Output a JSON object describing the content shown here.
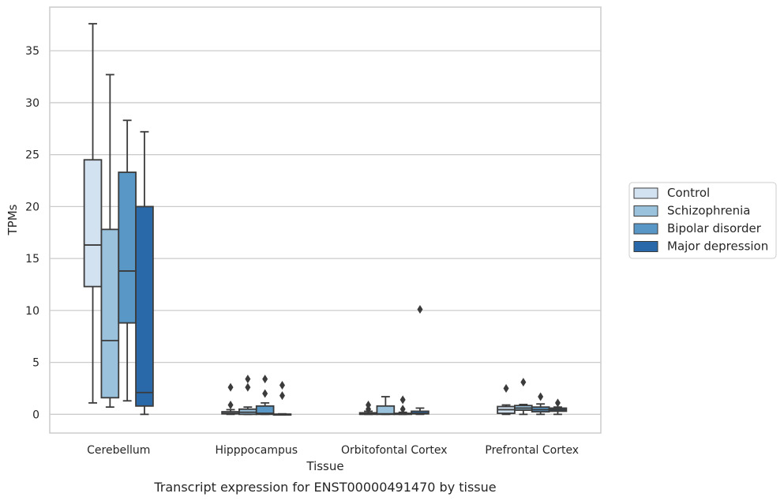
{
  "caption": "Transcript expression for ENST00000491470 by tissue",
  "chart_data": {
    "type": "boxplot",
    "xlabel": "Tissue",
    "ylabel": "TPMs",
    "categories": [
      "Cerebellum",
      "Hipppocampus",
      "Orbitofontal Cortex",
      "Prefrontal Cortex"
    ],
    "ylim": [
      -1.8,
      39.2
    ],
    "yticks": [
      0,
      5,
      10,
      15,
      20,
      25,
      30,
      35
    ],
    "grid": "horizontal",
    "legend_position": "right",
    "series": [
      {
        "name": "Control",
        "color": "#d3e2f1",
        "boxes": [
          {
            "whislo": 1.1,
            "q1": 12.3,
            "med": 16.3,
            "q3": 24.5,
            "whishi": 37.6,
            "fliers": []
          },
          {
            "whislo": 0.0,
            "q1": 0.05,
            "med": 0.1,
            "q3": 0.25,
            "whishi": 0.45,
            "fliers": [
              0.9,
              2.6
            ]
          },
          {
            "whislo": 0.0,
            "q1": 0.0,
            "med": 0.05,
            "q3": 0.15,
            "whishi": 0.3,
            "fliers": [
              0.5,
              0.9
            ]
          },
          {
            "whislo": 0.0,
            "q1": 0.1,
            "med": 0.45,
            "q3": 0.75,
            "whishi": 0.9,
            "fliers": [
              2.5
            ]
          }
        ]
      },
      {
        "name": "Schizophrenia",
        "color": "#9ac2dd",
        "boxes": [
          {
            "whislo": 0.7,
            "q1": 1.6,
            "med": 7.1,
            "q3": 17.8,
            "whishi": 32.7,
            "fliers": []
          },
          {
            "whislo": 0.0,
            "q1": 0.0,
            "med": 0.2,
            "q3": 0.5,
            "whishi": 0.7,
            "fliers": [
              2.6,
              3.4
            ]
          },
          {
            "whislo": 0.0,
            "q1": 0.0,
            "med": 0.05,
            "q3": 0.8,
            "whishi": 1.7,
            "fliers": []
          },
          {
            "whislo": 0.0,
            "q1": 0.4,
            "med": 0.6,
            "q3": 0.85,
            "whishi": 0.95,
            "fliers": [
              3.1
            ]
          }
        ]
      },
      {
        "name": "Bipolar disorder",
        "color": "#5897c6",
        "boxes": [
          {
            "whislo": 1.3,
            "q1": 8.8,
            "med": 13.8,
            "q3": 23.3,
            "whishi": 28.3,
            "fliers": []
          },
          {
            "whislo": 0.0,
            "q1": 0.0,
            "med": 0.1,
            "q3": 0.8,
            "whishi": 1.1,
            "fliers": [
              2.0,
              3.4
            ]
          },
          {
            "whislo": 0.0,
            "q1": 0.0,
            "med": 0.05,
            "q3": 0.1,
            "whishi": 0.2,
            "fliers": [
              0.5,
              1.4
            ]
          },
          {
            "whislo": 0.0,
            "q1": 0.25,
            "med": 0.45,
            "q3": 0.7,
            "whishi": 1.0,
            "fliers": [
              1.7
            ]
          }
        ]
      },
      {
        "name": "Major depression",
        "color": "#2a69a9",
        "boxes": [
          {
            "whislo": 0.0,
            "q1": 0.8,
            "med": 2.1,
            "q3": 20.0,
            "whishi": 27.2,
            "fliers": []
          },
          {
            "whislo": 0.0,
            "q1": 0.0,
            "med": 0.0,
            "q3": 0.02,
            "whishi": 0.05,
            "fliers": [
              1.8,
              2.8
            ]
          },
          {
            "whislo": 0.0,
            "q1": 0.05,
            "med": 0.1,
            "q3": 0.3,
            "whishi": 0.6,
            "fliers": [
              10.1
            ]
          },
          {
            "whislo": 0.0,
            "q1": 0.3,
            "med": 0.45,
            "q3": 0.6,
            "whishi": 0.7,
            "fliers": [
              1.1
            ]
          }
        ]
      }
    ]
  }
}
